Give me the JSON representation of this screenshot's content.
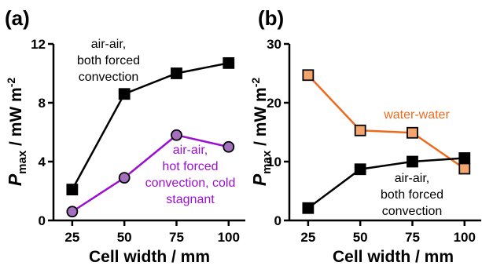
{
  "chart_data": [
    {
      "panel_label": "(a)",
      "type": "line",
      "x": [
        25,
        50,
        75,
        100
      ],
      "xlim": [
        16,
        108
      ],
      "ylim": [
        0,
        12
      ],
      "xticks": [
        "25",
        "50",
        "75",
        "100"
      ],
      "yticks": [
        "0",
        "4",
        "8",
        "12"
      ],
      "xlabel": "Cell width / mm",
      "ylabel": {
        "symbol": "P",
        "sub": "max",
        "unit": " / mW m",
        "sup": "-2"
      },
      "grid": false,
      "series": [
        {
          "values": [
            2.1,
            8.6,
            10.0,
            10.7
          ],
          "marker": "square",
          "line_color": "#000000",
          "fill_color": "#000000",
          "annotation": [
            "air-air,",
            "both forced",
            "convection"
          ],
          "annotation_color": "#000000"
        },
        {
          "values": [
            0.6,
            2.9,
            5.8,
            5.0
          ],
          "marker": "circle",
          "line_color": "#9b0fd1",
          "fill_color": "#a36fbe",
          "annotation": [
            "air-air,",
            "hot forced",
            "convection, cold",
            "stagnant"
          ],
          "annotation_color": "#9b0fd1"
        }
      ]
    },
    {
      "panel_label": "(b)",
      "type": "line",
      "x": [
        25,
        50,
        75,
        100
      ],
      "xlim": [
        16,
        108
      ],
      "ylim": [
        0,
        30
      ],
      "xticks": [
        "25",
        "50",
        "75",
        "100"
      ],
      "yticks": [
        "0",
        "10",
        "20",
        "30"
      ],
      "xlabel": "Cell width / mm",
      "ylabel": {
        "symbol": "P",
        "sub": "max",
        "unit": " / mW m",
        "sup": "-2"
      },
      "grid": false,
      "series": [
        {
          "values": [
            24.7,
            15.3,
            14.9,
            8.8
          ],
          "marker": "square",
          "line_color": "#ee6a1d",
          "fill_color": "#f4a56e",
          "annotation": [
            "water-water"
          ],
          "annotation_color": "#ee6a1d"
        },
        {
          "values": [
            2.1,
            8.7,
            10.0,
            10.6
          ],
          "marker": "square",
          "line_color": "#000000",
          "fill_color": "#000000",
          "annotation": [
            "air-air,",
            "both forced",
            "convection"
          ],
          "annotation_color": "#000000"
        }
      ]
    }
  ]
}
